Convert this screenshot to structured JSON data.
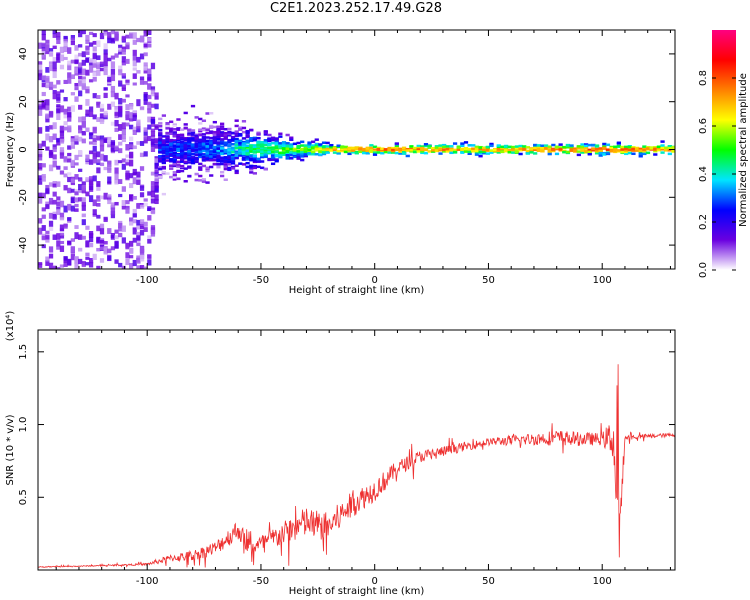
{
  "title": "C2E1.2023.252.17.49.G28",
  "chart_data": [
    {
      "type": "heatmap",
      "xlabel": "Height of straight line (km)",
      "ylabel": "Frequency (Hz)",
      "xlim": [
        -148,
        132
      ],
      "ylim": [
        -50,
        50
      ],
      "x_ticks": [
        -100,
        -50,
        0,
        50,
        100
      ],
      "y_ticks": [
        -40,
        -20,
        0,
        20,
        40
      ],
      "colorbar": {
        "label": "Normalized spectral amplitude",
        "range": [
          0,
          1
        ],
        "ticks": [
          "0.0",
          "0.2",
          "0.4",
          "0.6",
          "0.8"
        ],
        "colors": [
          "#ffffff",
          "#6a00e0",
          "#0000ff",
          "#00e5ff",
          "#00ff00",
          "#ffff00",
          "#ff8000",
          "#ff0000",
          "#ff0080"
        ]
      },
      "profile": {
        "x": [
          -148,
          -100,
          -95,
          -70,
          -55,
          -45,
          -35,
          -25,
          -20,
          0,
          50,
          100,
          132
        ],
        "spread_hz": [
          50,
          50,
          12,
          10,
          8,
          6,
          4,
          3,
          2,
          2,
          2,
          2,
          2
        ],
        "amplitude": [
          0.15,
          0.15,
          0.25,
          0.3,
          0.45,
          0.5,
          0.55,
          0.6,
          0.7,
          0.75,
          0.7,
          0.8,
          0.7
        ]
      }
    },
    {
      "type": "line",
      "xlabel": "Height of straight line (km)",
      "ylabel": "SNR (10 * v/v)",
      "y_multiplier": "(x10⁴)",
      "xlim": [
        -148,
        132
      ],
      "ylim": [
        0,
        16500
      ],
      "x_ticks": [
        -100,
        -50,
        0,
        50,
        100
      ],
      "y_ticks": [
        {
          "value": 5000,
          "label": "0.5"
        },
        {
          "value": 10000,
          "label": "1.0"
        },
        {
          "value": 15000,
          "label": "1.5"
        }
      ],
      "color": "#ee3030",
      "series": [
        {
          "x": [
            -148,
            -120,
            -100,
            -95,
            -90,
            -80,
            -70,
            -60,
            -55,
            -50,
            -40,
            -30,
            -25,
            -20,
            -10,
            0,
            10,
            20,
            40,
            50,
            60,
            70,
            80,
            90,
            100,
            105,
            107,
            110,
            120,
            132
          ],
          "values": [
            200,
            300,
            400,
            600,
            800,
            1000,
            1500,
            2800,
            1500,
            1800,
            2500,
            3300,
            3000,
            3000,
            4500,
            5500,
            7000,
            7800,
            8500,
            8800,
            8900,
            9000,
            9100,
            9000,
            9000,
            9100,
            1200,
            9100,
            9200,
            9300
          ],
          "noise": [
            50,
            60,
            120,
            300,
            400,
            600,
            800,
            1200,
            900,
            1000,
            1400,
            1800,
            1600,
            1700,
            1500,
            1300,
            900,
            700,
            500,
            400,
            600,
            700,
            900,
            800,
            700,
            2500,
            4000,
            300,
            250,
            200
          ]
        }
      ]
    }
  ]
}
